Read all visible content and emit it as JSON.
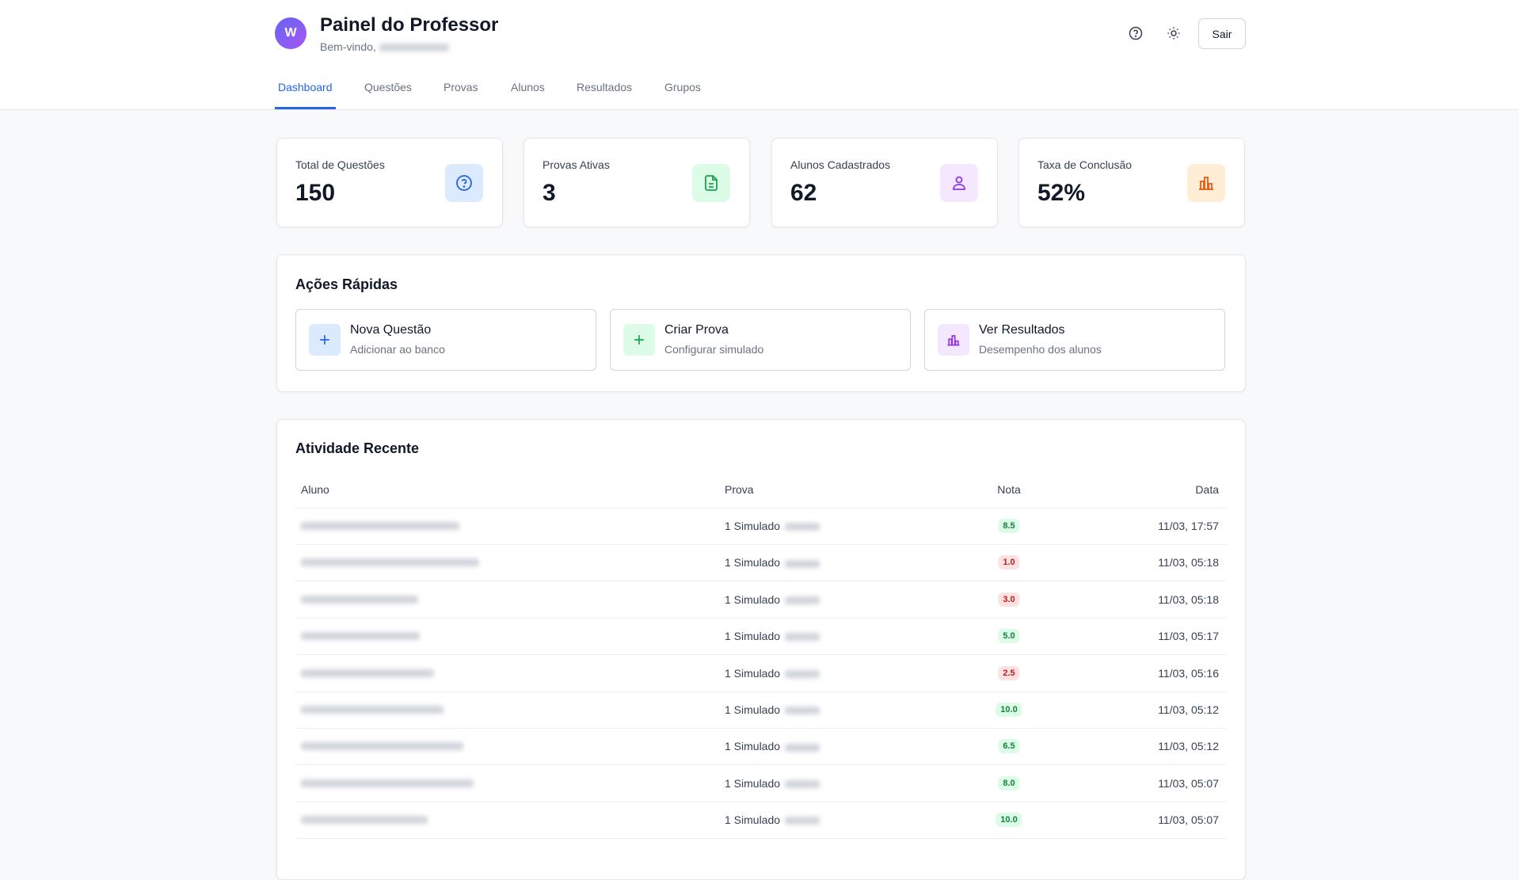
{
  "header": {
    "avatar": "W",
    "title": "Painel do Professor",
    "greeting": "Bem-vindo,",
    "logout": "Sair"
  },
  "tabs": [
    "Dashboard",
    "Questões",
    "Provas",
    "Alunos",
    "Resultados",
    "Grupos"
  ],
  "stats": [
    {
      "label": "Total de Questões",
      "value": "150"
    },
    {
      "label": "Provas Ativas",
      "value": "3"
    },
    {
      "label": "Alunos Cadastrados",
      "value": "62"
    },
    {
      "label": "Taxa de Conclusão",
      "value": "52%"
    }
  ],
  "quick_actions": {
    "title": "Ações Rápidas",
    "items": [
      {
        "title": "Nova Questão",
        "subtitle": "Adicionar ao banco"
      },
      {
        "title": "Criar Prova",
        "subtitle": "Configurar simulado"
      },
      {
        "title": "Ver Resultados",
        "subtitle": "Desempenho dos alunos"
      }
    ]
  },
  "recent_activity": {
    "title": "Atividade Recente",
    "columns": [
      "Aluno",
      "Prova",
      "Nota",
      "Data"
    ],
    "rows": [
      {
        "prova": "1 Simulado",
        "nota": "8.5",
        "data": "11/03, 17:57"
      },
      {
        "prova": "1 Simulado",
        "nota": "1.0",
        "data": "11/03, 05:18"
      },
      {
        "prova": "1 Simulado",
        "nota": "3.0",
        "data": "11/03, 05:18"
      },
      {
        "prova": "1 Simulado",
        "nota": "5.0",
        "data": "11/03, 05:17"
      },
      {
        "prova": "1 Simulado",
        "nota": "2.5",
        "data": "11/03, 05:16"
      },
      {
        "prova": "1 Simulado",
        "nota": "10.0",
        "data": "11/03, 05:12"
      },
      {
        "prova": "1 Simulado",
        "nota": "6.5",
        "data": "11/03, 05:12"
      },
      {
        "prova": "1 Simulado",
        "nota": "8.0",
        "data": "11/03, 05:07"
      },
      {
        "prova": "1 Simulado",
        "nota": "10.0",
        "data": "11/03, 05:07"
      }
    ]
  }
}
